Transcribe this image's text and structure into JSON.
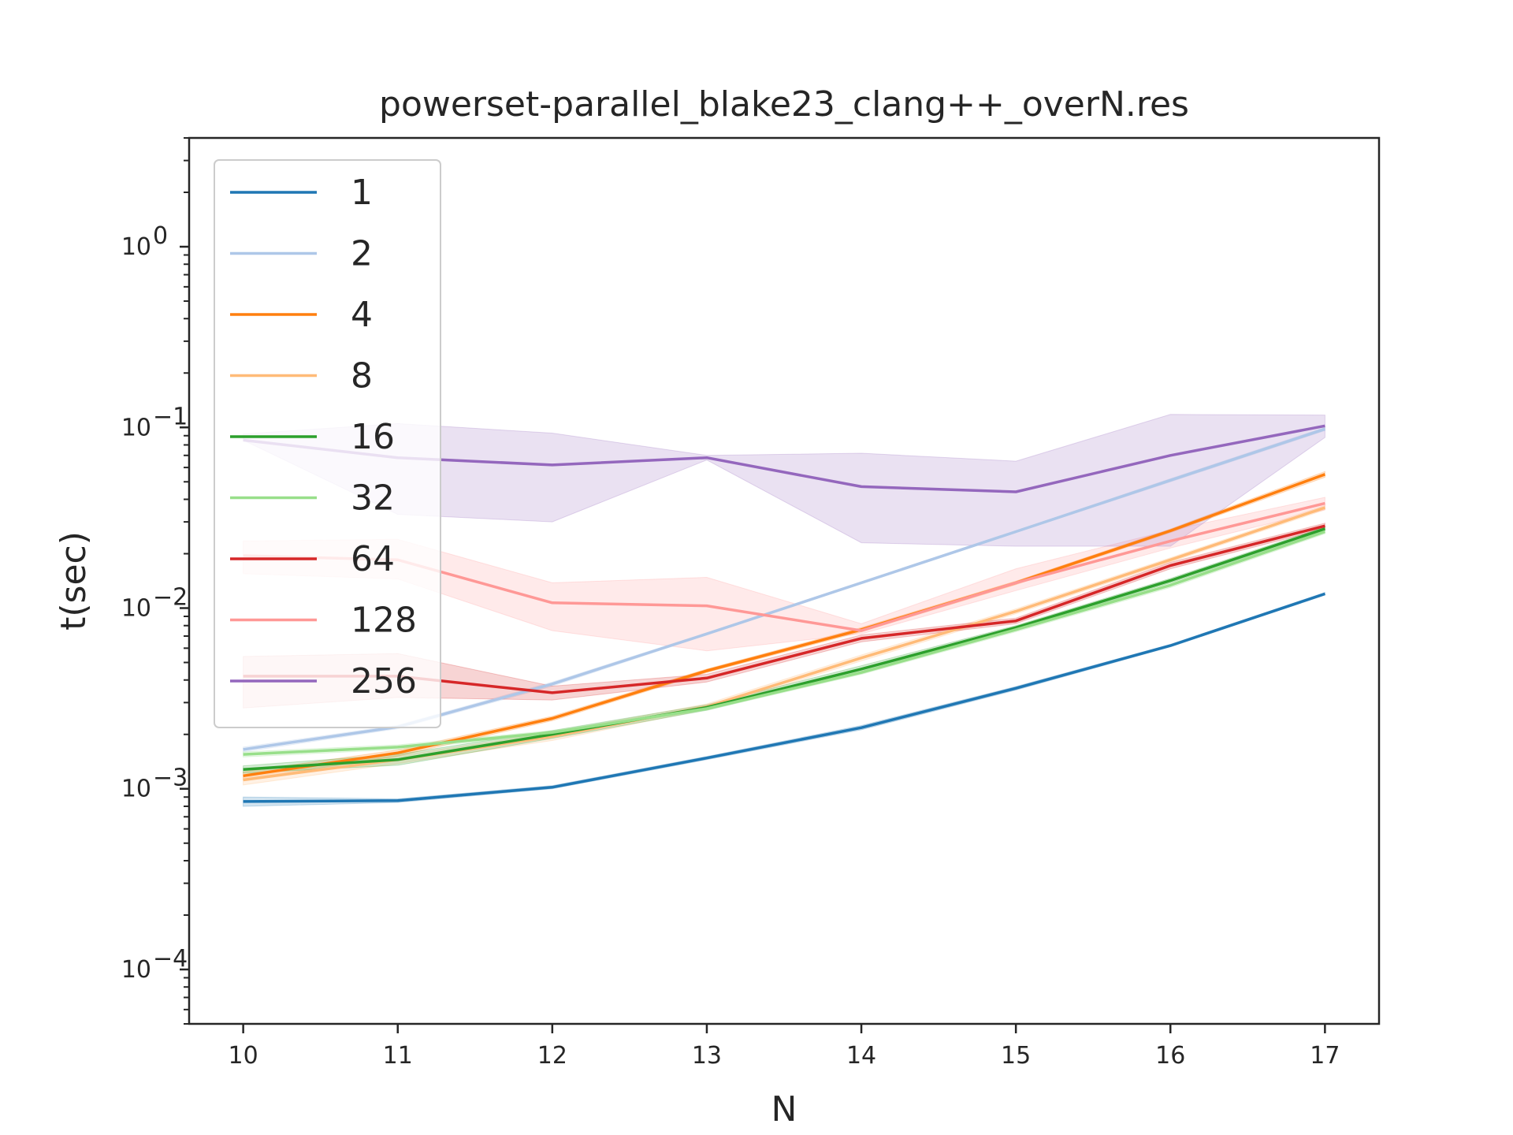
{
  "chart_data": {
    "type": "line",
    "title": "powerset-parallel_blake23_clang++_overN.res",
    "xlabel": "N",
    "ylabel": "t(sec)",
    "yscale": "log",
    "xlim": [
      9.65,
      17.35
    ],
    "ylim": [
      5e-05,
      4
    ],
    "x": [
      10,
      11,
      12,
      13,
      14,
      15,
      16,
      17
    ],
    "x_tick_labels": [
      "10",
      "11",
      "12",
      "13",
      "14",
      "15",
      "16",
      "17"
    ],
    "y_ticks": [
      0.0001,
      0.001,
      0.01,
      0.1,
      1
    ],
    "y_tick_labels": [
      {
        "base": "10",
        "exp": "−4"
      },
      {
        "base": "10",
        "exp": "−3"
      },
      {
        "base": "10",
        "exp": "−2"
      },
      {
        "base": "10",
        "exp": "−1"
      },
      {
        "base": "10",
        "exp": "0"
      }
    ],
    "grid": false,
    "legend_position": "top-left",
    "series": [
      {
        "name": "1",
        "color": "#1f77b4",
        "values": [
          0.00085,
          0.00086,
          0.00102,
          0.00148,
          0.00218,
          0.0036,
          0.0062,
          0.012
        ],
        "lower": [
          0.0008,
          0.00084,
          0.001,
          0.00145,
          0.00212,
          0.00352,
          0.0061,
          0.0118
        ],
        "upper": [
          0.0009,
          0.00088,
          0.00104,
          0.00151,
          0.00224,
          0.00368,
          0.0063,
          0.0122
        ]
      },
      {
        "name": "2",
        "color": "#aec7e8",
        "values": [
          0.00165,
          0.0022,
          0.0038,
          0.0072,
          0.0138,
          0.0265,
          0.051,
          0.098
        ],
        "lower": [
          0.0016,
          0.00215,
          0.0037,
          0.0071,
          0.0136,
          0.0262,
          0.05,
          0.096
        ],
        "upper": [
          0.0017,
          0.00225,
          0.0039,
          0.0073,
          0.014,
          0.0268,
          0.052,
          0.1
        ]
      },
      {
        "name": "4",
        "color": "#ff7f0e",
        "values": [
          0.00118,
          0.00158,
          0.00245,
          0.0045,
          0.0076,
          0.0138,
          0.0268,
          0.055
        ],
        "lower": [
          0.00112,
          0.00152,
          0.00238,
          0.0044,
          0.0074,
          0.0135,
          0.0262,
          0.053
        ],
        "upper": [
          0.00124,
          0.00164,
          0.00252,
          0.0046,
          0.0078,
          0.0141,
          0.0274,
          0.057
        ]
      },
      {
        "name": "8",
        "color": "#ffbb78",
        "values": [
          0.00112,
          0.00145,
          0.00195,
          0.00285,
          0.0053,
          0.0096,
          0.0185,
          0.036
        ],
        "lower": [
          0.00105,
          0.00138,
          0.00185,
          0.00275,
          0.0051,
          0.0093,
          0.018,
          0.035
        ],
        "upper": [
          0.0012,
          0.00152,
          0.00205,
          0.00295,
          0.0055,
          0.0099,
          0.019,
          0.037
        ]
      },
      {
        "name": "16",
        "color": "#2ca02c",
        "values": [
          0.00128,
          0.00145,
          0.002,
          0.00282,
          0.0046,
          0.0078,
          0.0142,
          0.0275
        ],
        "lower": [
          0.00122,
          0.00135,
          0.0019,
          0.00272,
          0.0044,
          0.0076,
          0.0138,
          0.0268
        ],
        "upper": [
          0.00134,
          0.00155,
          0.0021,
          0.00292,
          0.0048,
          0.008,
          0.0146,
          0.0282
        ]
      },
      {
        "name": "32",
        "color": "#98df8a",
        "values": [
          0.00155,
          0.0017,
          0.00205,
          0.00278,
          0.0044,
          0.0076,
          0.0134,
          0.0265
        ],
        "lower": [
          0.0015,
          0.00165,
          0.002,
          0.00272,
          0.0043,
          0.0074,
          0.013,
          0.0258
        ],
        "upper": [
          0.0016,
          0.00175,
          0.0021,
          0.00284,
          0.0045,
          0.0078,
          0.0138,
          0.0272
        ]
      },
      {
        "name": "64",
        "color": "#d62728",
        "values": [
          0.0042,
          0.0042,
          0.0034,
          0.0041,
          0.0068,
          0.0085,
          0.0172,
          0.0285
        ],
        "lower": [
          0.0028,
          0.0032,
          0.0031,
          0.0039,
          0.0065,
          0.0082,
          0.0165,
          0.0275
        ],
        "upper": [
          0.0054,
          0.0056,
          0.0037,
          0.0043,
          0.0071,
          0.0088,
          0.0179,
          0.0295
        ]
      },
      {
        "name": "128",
        "color": "#ff9896",
        "values": [
          0.0195,
          0.0185,
          0.0107,
          0.0103,
          0.0075,
          0.0138,
          0.0235,
          0.038
        ],
        "lower": [
          0.0155,
          0.0145,
          0.0075,
          0.0058,
          0.0072,
          0.0125,
          0.0215,
          0.035
        ],
        "upper": [
          0.0235,
          0.024,
          0.0138,
          0.0148,
          0.0082,
          0.0165,
          0.027,
          0.041
        ]
      },
      {
        "name": "256",
        "color": "#9467bd",
        "values": [
          0.085,
          0.068,
          0.062,
          0.068,
          0.047,
          0.044,
          0.07,
          0.102
        ],
        "lower": [
          0.085,
          0.033,
          0.03,
          0.066,
          0.023,
          0.022,
          0.022,
          0.088
        ],
        "upper": [
          0.092,
          0.105,
          0.093,
          0.07,
          0.072,
          0.065,
          0.118,
          0.117
        ]
      }
    ]
  }
}
